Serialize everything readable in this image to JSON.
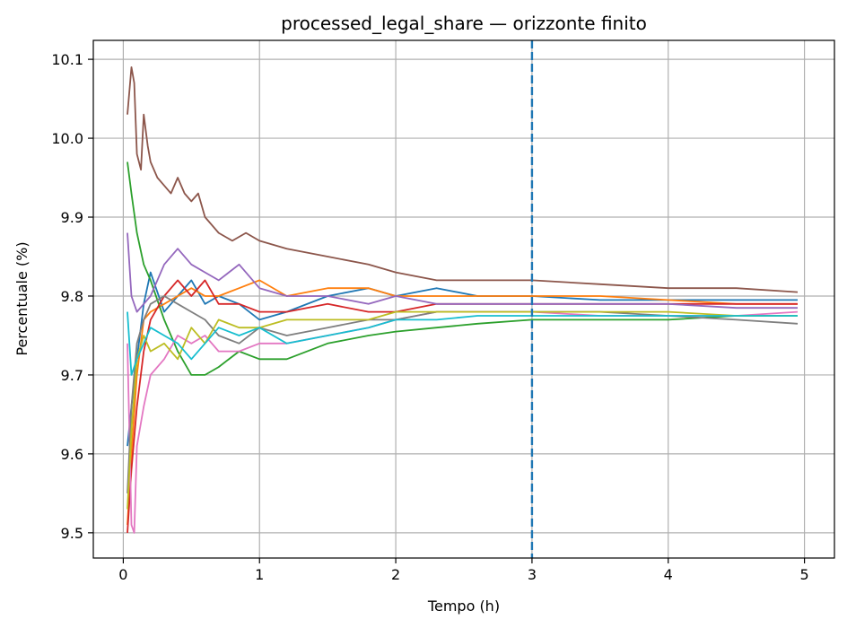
{
  "chart_data": {
    "type": "line",
    "title": "processed_legal_share — orizzonte finito",
    "xlabel": "Tempo (h)",
    "ylabel": "Percentuale (%)",
    "xlim": [
      -0.22,
      5.22
    ],
    "ylim": [
      9.468,
      10.124
    ],
    "x_ticks": [
      0,
      1,
      2,
      3,
      4,
      5
    ],
    "y_ticks": [
      9.5,
      9.6,
      9.7,
      9.8,
      9.9,
      10.0,
      10.1
    ],
    "x_tick_labels": [
      "0",
      "1",
      "2",
      "3",
      "4",
      "5"
    ],
    "y_tick_labels": [
      "9.5",
      "9.6",
      "9.7",
      "9.8",
      "9.9",
      "10.0",
      "10.1"
    ],
    "grid": true,
    "vline": {
      "x": 3.0,
      "style": "dashed",
      "color": "#1f77b4"
    },
    "series": [
      {
        "color": "#1f77b4",
        "x": [
          0.03,
          0.06,
          0.1,
          0.15,
          0.2,
          0.3,
          0.4,
          0.5,
          0.6,
          0.7,
          0.85,
          1.0,
          1.2,
          1.5,
          1.8,
          2.0,
          2.3,
          2.6,
          3.0,
          3.5,
          4.0,
          4.5,
          4.95
        ],
        "y": [
          9.61,
          9.66,
          9.72,
          9.79,
          9.83,
          9.78,
          9.8,
          9.82,
          9.79,
          9.8,
          9.79,
          9.77,
          9.78,
          9.8,
          9.81,
          9.8,
          9.81,
          9.8,
          9.8,
          9.795,
          9.795,
          9.795,
          9.795
        ]
      },
      {
        "color": "#ff7f0e",
        "x": [
          0.03,
          0.06,
          0.1,
          0.15,
          0.2,
          0.3,
          0.4,
          0.5,
          0.6,
          0.7,
          0.85,
          1.0,
          1.2,
          1.5,
          1.8,
          2.0,
          2.3,
          2.6,
          3.0,
          3.5,
          4.0,
          4.5,
          4.95
        ],
        "y": [
          9.51,
          9.6,
          9.7,
          9.77,
          9.78,
          9.79,
          9.8,
          9.81,
          9.8,
          9.8,
          9.81,
          9.82,
          9.8,
          9.81,
          9.81,
          9.8,
          9.8,
          9.8,
          9.8,
          9.8,
          9.795,
          9.79,
          9.79
        ]
      },
      {
        "color": "#2ca02c",
        "x": [
          0.03,
          0.06,
          0.1,
          0.15,
          0.2,
          0.3,
          0.4,
          0.5,
          0.6,
          0.7,
          0.85,
          1.0,
          1.2,
          1.5,
          1.8,
          2.0,
          2.3,
          2.6,
          3.0,
          3.5,
          4.0,
          4.5,
          4.95
        ],
        "y": [
          9.97,
          9.93,
          9.88,
          9.84,
          9.82,
          9.77,
          9.73,
          9.7,
          9.7,
          9.71,
          9.73,
          9.72,
          9.72,
          9.74,
          9.75,
          9.755,
          9.76,
          9.765,
          9.77,
          9.77,
          9.77,
          9.775,
          9.775
        ]
      },
      {
        "color": "#d62728",
        "x": [
          0.03,
          0.06,
          0.1,
          0.15,
          0.2,
          0.3,
          0.4,
          0.5,
          0.6,
          0.7,
          0.85,
          1.0,
          1.2,
          1.5,
          1.8,
          2.0,
          2.3,
          2.6,
          3.0,
          3.5,
          4.0,
          4.5,
          4.95
        ],
        "y": [
          9.5,
          9.58,
          9.66,
          9.73,
          9.77,
          9.8,
          9.82,
          9.8,
          9.82,
          9.79,
          9.79,
          9.78,
          9.78,
          9.79,
          9.78,
          9.78,
          9.79,
          9.79,
          9.79,
          9.79,
          9.79,
          9.79,
          9.79
        ]
      },
      {
        "color": "#9467bd",
        "x": [
          0.03,
          0.06,
          0.1,
          0.15,
          0.2,
          0.3,
          0.4,
          0.5,
          0.6,
          0.7,
          0.85,
          1.0,
          1.2,
          1.5,
          1.8,
          2.0,
          2.3,
          2.6,
          3.0,
          3.5,
          4.0,
          4.5,
          4.95
        ],
        "y": [
          9.88,
          9.8,
          9.78,
          9.79,
          9.8,
          9.84,
          9.86,
          9.84,
          9.83,
          9.82,
          9.84,
          9.81,
          9.8,
          9.8,
          9.79,
          9.8,
          9.79,
          9.79,
          9.79,
          9.79,
          9.79,
          9.785,
          9.785
        ]
      },
      {
        "color": "#8c564b",
        "x": [
          0.03,
          0.06,
          0.08,
          0.1,
          0.13,
          0.15,
          0.18,
          0.2,
          0.25,
          0.3,
          0.35,
          0.4,
          0.45,
          0.5,
          0.55,
          0.6,
          0.7,
          0.8,
          0.9,
          1.0,
          1.2,
          1.5,
          1.8,
          2.0,
          2.3,
          2.6,
          3.0,
          3.5,
          4.0,
          4.5,
          4.95
        ],
        "y": [
          10.03,
          10.09,
          10.07,
          9.98,
          9.96,
          10.03,
          9.99,
          9.97,
          9.95,
          9.94,
          9.93,
          9.95,
          9.93,
          9.92,
          9.93,
          9.9,
          9.88,
          9.87,
          9.88,
          9.87,
          9.86,
          9.85,
          9.84,
          9.83,
          9.82,
          9.82,
          9.82,
          9.815,
          9.81,
          9.81,
          9.805
        ]
      },
      {
        "color": "#e377c2",
        "x": [
          0.03,
          0.06,
          0.08,
          0.1,
          0.15,
          0.2,
          0.3,
          0.4,
          0.5,
          0.6,
          0.7,
          0.85,
          1.0,
          1.2,
          1.5,
          1.8,
          2.0,
          2.3,
          2.6,
          3.0,
          3.5,
          4.0,
          4.5,
          4.95
        ],
        "y": [
          9.74,
          9.51,
          9.5,
          9.61,
          9.66,
          9.7,
          9.72,
          9.75,
          9.74,
          9.75,
          9.73,
          9.73,
          9.74,
          9.74,
          9.75,
          9.76,
          9.77,
          9.78,
          9.78,
          9.78,
          9.775,
          9.775,
          9.775,
          9.78
        ]
      },
      {
        "color": "#7f7f7f",
        "x": [
          0.03,
          0.06,
          0.1,
          0.15,
          0.2,
          0.3,
          0.4,
          0.5,
          0.6,
          0.7,
          0.85,
          1.0,
          1.2,
          1.5,
          1.8,
          2.0,
          2.3,
          2.6,
          3.0,
          3.5,
          4.0,
          4.5,
          4.95
        ],
        "y": [
          9.55,
          9.66,
          9.74,
          9.77,
          9.79,
          9.8,
          9.79,
          9.78,
          9.77,
          9.75,
          9.74,
          9.76,
          9.75,
          9.76,
          9.77,
          9.77,
          9.78,
          9.78,
          9.78,
          9.78,
          9.775,
          9.77,
          9.765
        ]
      },
      {
        "color": "#bcbd22",
        "x": [
          0.03,
          0.06,
          0.1,
          0.15,
          0.2,
          0.3,
          0.4,
          0.5,
          0.6,
          0.7,
          0.85,
          1.0,
          1.2,
          1.5,
          1.8,
          2.0,
          2.3,
          2.6,
          3.0,
          3.5,
          4.0,
          4.5,
          4.95
        ],
        "y": [
          9.53,
          9.63,
          9.72,
          9.75,
          9.73,
          9.74,
          9.72,
          9.76,
          9.74,
          9.77,
          9.76,
          9.76,
          9.77,
          9.77,
          9.77,
          9.78,
          9.78,
          9.78,
          9.78,
          9.78,
          9.78,
          9.775,
          9.775
        ]
      },
      {
        "color": "#17becf",
        "x": [
          0.03,
          0.06,
          0.1,
          0.15,
          0.2,
          0.3,
          0.4,
          0.5,
          0.6,
          0.7,
          0.85,
          1.0,
          1.2,
          1.5,
          1.8,
          2.0,
          2.3,
          2.6,
          3.0,
          3.5,
          4.0,
          4.5,
          4.95
        ],
        "y": [
          9.78,
          9.7,
          9.72,
          9.74,
          9.76,
          9.75,
          9.74,
          9.72,
          9.74,
          9.76,
          9.75,
          9.76,
          9.74,
          9.75,
          9.76,
          9.77,
          9.77,
          9.775,
          9.775,
          9.775,
          9.775,
          9.775,
          9.775
        ]
      }
    ]
  }
}
